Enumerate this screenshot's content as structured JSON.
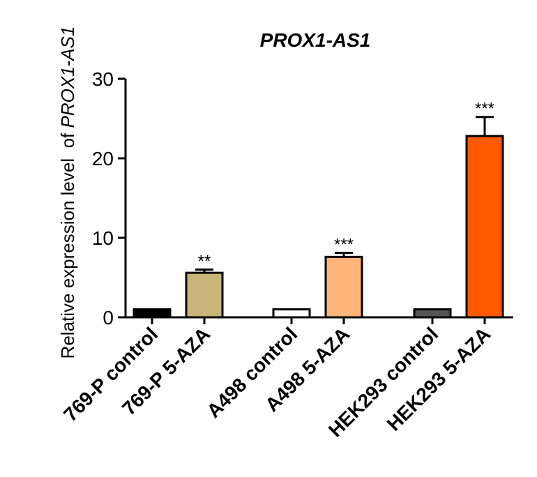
{
  "chart_data": {
    "type": "bar",
    "title": "PROX1-AS1",
    "ylabel_prefix": "Relative expression level  of ",
    "ylabel_italic": "PROX1-AS1",
    "xlabel": "",
    "ylim": [
      0,
      30
    ],
    "yticks": [
      0,
      10,
      20,
      30
    ],
    "ytick_labels": [
      "0",
      "10",
      "20",
      "30"
    ],
    "grid": false,
    "legend": "none",
    "categories": [
      "769-P control",
      "769-P 5-AZA",
      "A498 control",
      "A498 5-AZA",
      "HEK293 control",
      "HEK293 5-AZA"
    ],
    "values": [
      1.0,
      5.6,
      1.0,
      7.6,
      1.0,
      22.8
    ],
    "errors": [
      0.0,
      0.4,
      0.0,
      0.5,
      0.0,
      2.4
    ],
    "significance": [
      "",
      "**",
      "",
      "***",
      "",
      "***"
    ],
    "colors": [
      "#000000",
      "#c8b57a",
      "#ffffff",
      "#ffb57a",
      "#555555",
      "#ff5a00"
    ]
  }
}
